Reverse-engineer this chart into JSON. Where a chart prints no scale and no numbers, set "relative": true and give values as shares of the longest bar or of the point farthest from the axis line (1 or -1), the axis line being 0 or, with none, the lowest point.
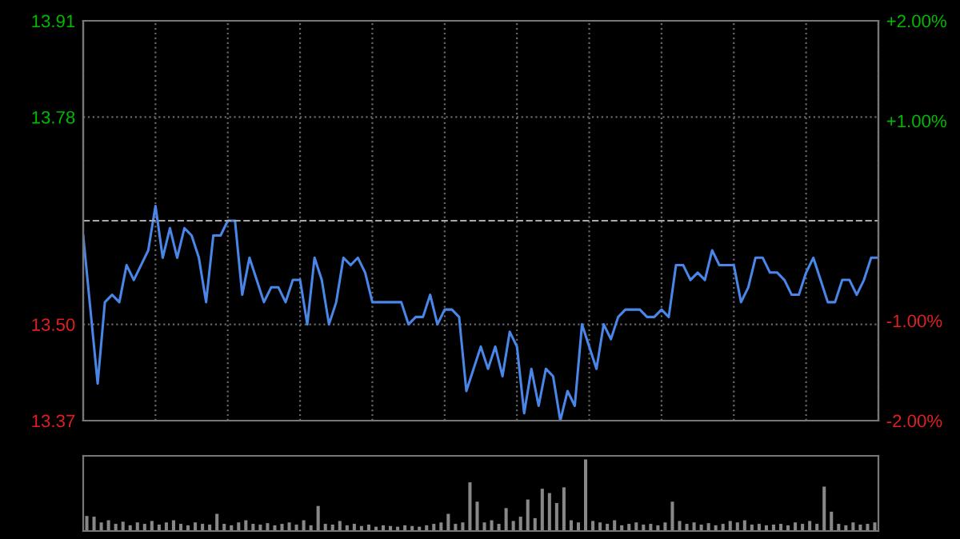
{
  "chart_data": [
    {
      "type": "line",
      "categories": [
        null,
        null,
        null,
        null,
        null,
        null,
        null,
        null,
        null,
        null,
        null,
        null,
        null,
        null,
        null,
        null,
        null,
        null,
        null,
        null,
        null,
        null,
        null,
        null,
        null,
        null,
        null,
        null,
        null,
        null,
        null,
        null,
        null,
        null,
        null,
        null,
        null,
        null,
        null,
        null,
        null,
        null,
        null,
        null,
        null,
        null,
        null,
        null,
        null,
        null,
        null,
        null,
        null,
        null,
        null,
        null,
        null,
        null,
        null,
        null,
        null,
        null,
        null,
        null,
        null,
        null,
        null,
        null,
        null,
        null,
        null,
        null,
        null,
        null,
        null,
        null,
        null,
        null,
        null,
        null,
        null,
        null,
        null,
        null,
        null,
        null,
        null,
        null,
        null,
        null,
        null,
        null,
        null,
        null,
        null,
        null,
        null,
        null,
        null,
        null,
        null,
        null,
        null,
        null,
        null,
        null,
        null,
        null,
        null,
        null,
        null
      ],
      "series": [
        {
          "color": "#4a86e8",
          "values": [
            13.62,
            13.52,
            13.42,
            13.53,
            13.54,
            13.53,
            13.58,
            13.56,
            13.58,
            13.6,
            13.66,
            13.59,
            13.63,
            13.59,
            13.63,
            13.62,
            13.59,
            13.53,
            13.62,
            13.62,
            13.64,
            13.64,
            13.54,
            13.59,
            13.56,
            13.53,
            13.55,
            13.55,
            13.53,
            13.56,
            13.56,
            13.5,
            13.59,
            13.56,
            13.5,
            13.53,
            13.59,
            13.58,
            13.59,
            13.57,
            13.53,
            13.53,
            13.53,
            13.53,
            13.53,
            13.5,
            13.51,
            13.51,
            13.54,
            13.5,
            13.52,
            13.52,
            13.51,
            13.41,
            13.44,
            13.47,
            13.44,
            13.47,
            13.43,
            13.49,
            13.47,
            13.38,
            13.44,
            13.39,
            13.44,
            13.43,
            13.37,
            13.41,
            13.39,
            13.5,
            13.47,
            13.44,
            13.5,
            13.48,
            13.51,
            13.52,
            13.52,
            13.52,
            13.51,
            13.51,
            13.52,
            13.51,
            13.58,
            13.58,
            13.56,
            13.57,
            13.56,
            13.6,
            13.58,
            13.58,
            13.58,
            13.53,
            13.55,
            13.59,
            13.59,
            13.57,
            13.57,
            13.56,
            13.54,
            13.54,
            13.57,
            13.59,
            13.56,
            13.53,
            13.53,
            13.56,
            13.56,
            13.54,
            13.56,
            13.59,
            13.59
          ]
        }
      ],
      "ylim": [
        13.37,
        13.91
      ],
      "yticks": [
        {
          "value": 13.37,
          "label": "13.37"
        },
        {
          "value": 13.5,
          "label": "13.50"
        },
        {
          "value": 13.78,
          "label": "13.78"
        },
        {
          "value": 13.91,
          "label": "13.91"
        }
      ],
      "y2lim": [
        -2,
        2
      ],
      "y2ticks": [
        {
          "value": -2,
          "label": "-2.00%"
        },
        {
          "value": -1,
          "label": "-1.00%"
        },
        {
          "value": 1,
          "label": "+1.00%"
        },
        {
          "value": 2,
          "label": "+2.00%"
        }
      ],
      "ref_lines": [
        {
          "axis": "y",
          "value": 13.64,
          "line_style": "dashed",
          "color": "#aaaaaa"
        }
      ],
      "grid": true
    },
    {
      "type": "bar",
      "relative": true,
      "color": "#888888",
      "categories": [
        null,
        null,
        null,
        null,
        null,
        null,
        null,
        null,
        null,
        null,
        null,
        null,
        null,
        null,
        null,
        null,
        null,
        null,
        null,
        null,
        null,
        null,
        null,
        null,
        null,
        null,
        null,
        null,
        null,
        null,
        null,
        null,
        null,
        null,
        null,
        null,
        null,
        null,
        null,
        null,
        null,
        null,
        null,
        null,
        null,
        null,
        null,
        null,
        null,
        null,
        null,
        null,
        null,
        null,
        null,
        null,
        null,
        null,
        null,
        null,
        null,
        null,
        null,
        null,
        null,
        null,
        null,
        null,
        null,
        null,
        null,
        null,
        null,
        null,
        null,
        null,
        null,
        null,
        null,
        null,
        null,
        null,
        null,
        null,
        null,
        null,
        null,
        null,
        null,
        null,
        null,
        null,
        null,
        null,
        null,
        null,
        null,
        null,
        null,
        null,
        null,
        null,
        null,
        null,
        null,
        null,
        null,
        null,
        null,
        null
      ],
      "values": [
        0.21,
        0.2,
        0.12,
        0.15,
        0.1,
        0.13,
        0.08,
        0.12,
        0.1,
        0.14,
        0.09,
        0.12,
        0.15,
        0.1,
        0.08,
        0.12,
        0.1,
        0.09,
        0.24,
        0.1,
        0.08,
        0.12,
        0.15,
        0.1,
        0.09,
        0.11,
        0.08,
        0.1,
        0.12,
        0.09,
        0.15,
        0.08,
        0.35,
        0.1,
        0.09,
        0.14,
        0.08,
        0.1,
        0.07,
        0.09,
        0.06,
        0.08,
        0.07,
        0.06,
        0.08,
        0.07,
        0.06,
        0.08,
        0.1,
        0.12,
        0.24,
        0.1,
        0.12,
        0.68,
        0.41,
        0.12,
        0.15,
        0.1,
        0.32,
        0.14,
        0.2,
        0.44,
        0.18,
        0.59,
        0.53,
        0.39,
        0.61,
        0.15,
        0.12,
        1,
        0.14,
        0.12,
        0.1,
        0.15,
        0.08,
        0.1,
        0.12,
        0.09,
        0.1,
        0.08,
        0.12,
        0.41,
        0.14,
        0.1,
        0.12,
        0.09,
        0.11,
        0.08,
        0.1,
        0.14,
        0.12,
        0.15,
        0.09,
        0.1,
        0.08,
        0.09,
        0.1,
        0.08,
        0.12,
        0.1,
        0.14,
        0.1,
        0.62,
        0.27,
        0.1,
        0.08,
        0.12,
        0.09,
        0.1,
        0.12
      ]
    }
  ]
}
